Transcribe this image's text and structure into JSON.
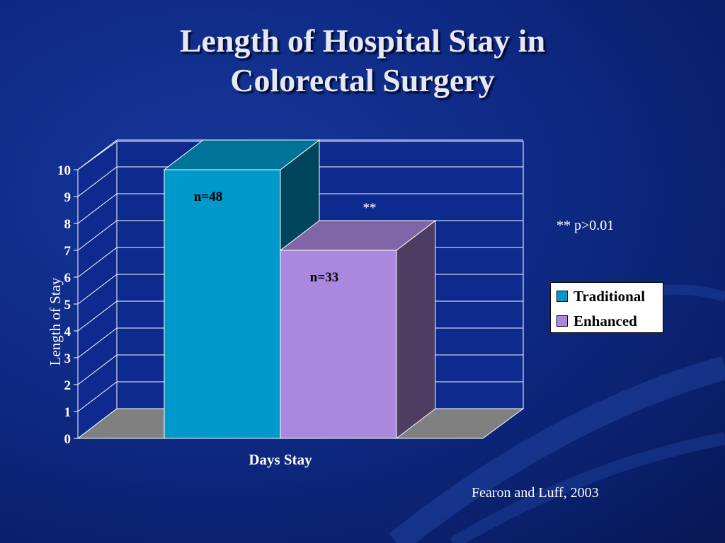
{
  "slide": {
    "title_lines": [
      "Length of Hospital Stay in",
      "Colorectal Surgery"
    ],
    "significance_note": "** p>0.01",
    "source": "Fearon and Luff, 2003"
  },
  "colors": {
    "background": "#0f2a85",
    "traditional": "#0099cc",
    "enhanced": "#aa88dd"
  },
  "chart_data": {
    "type": "bar",
    "title": "",
    "xlabel": "Days Stay",
    "ylabel": "Length of Stay",
    "ylim": [
      0,
      10
    ],
    "yticks": [
      "0",
      "1",
      "2",
      "3",
      "4",
      "5",
      "6",
      "7",
      "8",
      "9",
      "10"
    ],
    "categories": [
      "Days Stay"
    ],
    "series": [
      {
        "name": "Traditional",
        "values": [
          10
        ],
        "label": "n=48",
        "color": "#0099cc"
      },
      {
        "name": "Enhanced",
        "values": [
          7
        ],
        "label": "n=33",
        "color": "#aa88dd",
        "annotation": "**"
      }
    ],
    "grid": true,
    "three_d": true,
    "legend": "right"
  }
}
